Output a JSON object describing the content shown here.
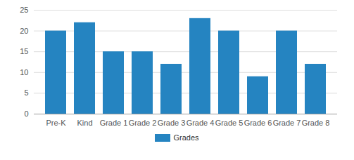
{
  "chart_data": {
    "type": "bar",
    "categories": [
      "Pre-K",
      "Kind",
      "Grade 1",
      "Grade 2",
      "Grade 3",
      "Grade 4",
      "Grade 5",
      "Grade 6",
      "Grade 7",
      "Grade 8"
    ],
    "series": [
      {
        "name": "Grades",
        "color": "#2584c1",
        "values": [
          20,
          22,
          15,
          15,
          12,
          23,
          20,
          9,
          20,
          12
        ]
      }
    ],
    "ylim": [
      0,
      25
    ],
    "yticks": [
      0,
      5,
      10,
      15,
      20,
      25
    ],
    "grid": true,
    "legend": "bottom"
  }
}
